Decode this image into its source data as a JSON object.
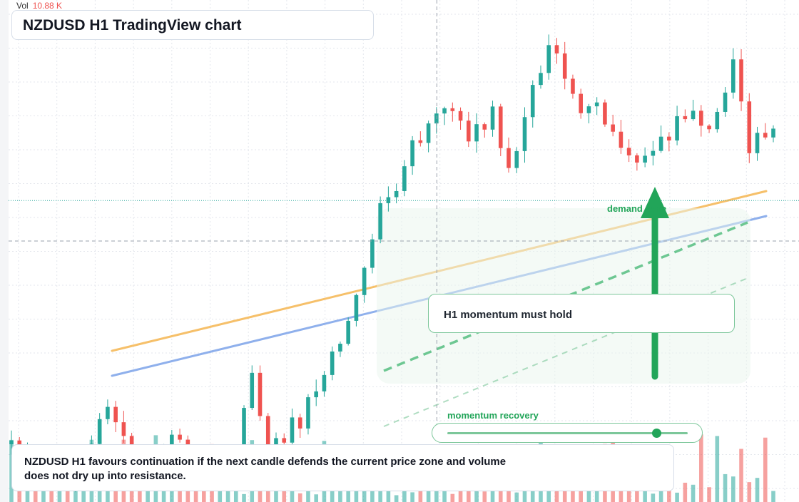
{
  "title": "NZDUSD H1 TradingView chart",
  "volume_readout": {
    "label": "Vol",
    "value": "10.88 K"
  },
  "annotations": {
    "note": "H1 momentum must hold",
    "zone_label": "demand zone",
    "slider_label": "momentum recovery",
    "slider_value": 0.87
  },
  "caption": "NZDUSD H1 favours continuation if the next candle defends the current price zone and volume does not dry up into resistance.",
  "colors": {
    "up": "#26a69a",
    "down": "#ef5350",
    "accent_green": "#22a559",
    "ma_fast": "#f6c06a",
    "ma_slow": "#8fb0ec",
    "grid": "#e3e6ec"
  },
  "icons": {
    "arrow": "arrow-up-icon"
  },
  "chart_data": {
    "type": "candlestick",
    "seed": 20240517,
    "candle_count": 96,
    "y_range": [
      0,
      100
    ],
    "volume_max": 10.88,
    "path": [
      [
        0,
        10
      ],
      [
        3,
        7
      ],
      [
        8,
        3
      ],
      [
        12,
        18
      ],
      [
        16,
        4
      ],
      [
        20,
        12
      ],
      [
        22,
        8
      ],
      [
        25,
        2
      ],
      [
        28,
        10
      ],
      [
        30,
        26
      ],
      [
        32,
        6
      ],
      [
        34,
        13
      ],
      [
        36,
        15
      ],
      [
        38,
        22
      ],
      [
        42,
        36
      ],
      [
        46,
        60
      ],
      [
        48,
        64
      ],
      [
        50,
        72
      ],
      [
        54,
        81
      ],
      [
        57,
        74
      ],
      [
        60,
        79
      ],
      [
        62,
        68
      ],
      [
        65,
        84
      ],
      [
        67,
        95
      ],
      [
        70,
        82
      ],
      [
        73,
        79
      ],
      [
        76,
        73
      ],
      [
        80,
        70
      ],
      [
        84,
        80
      ],
      [
        87,
        76
      ],
      [
        90,
        89
      ],
      [
        92,
        72
      ],
      [
        95,
        78
      ]
    ],
    "current_price_y": 61,
    "crosshair_index": 53
  }
}
